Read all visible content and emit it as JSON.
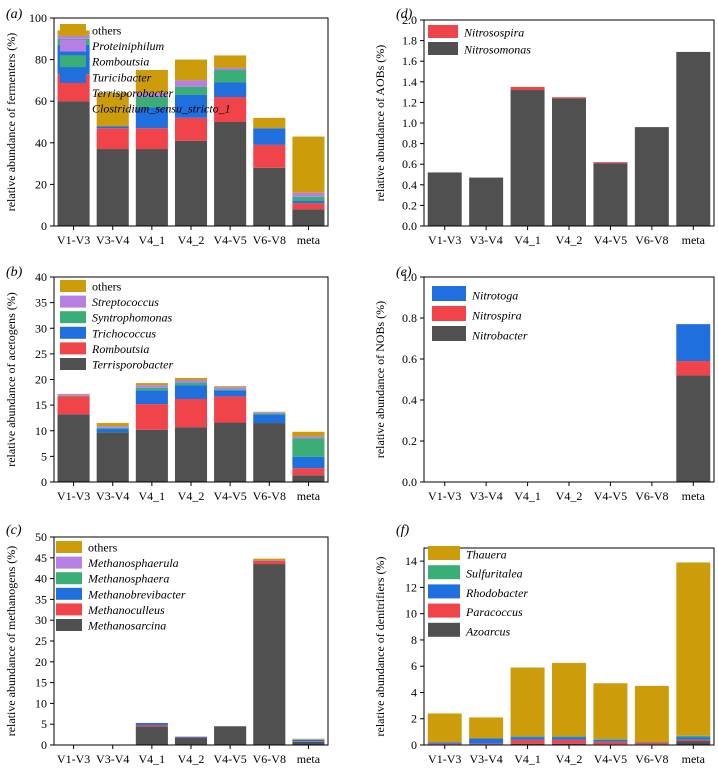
{
  "colors": {
    "dark": "#505050",
    "red": "#f0434a",
    "blue": "#1f6fde",
    "green": "#3aae76",
    "purple": "#b57fe4",
    "gold": "#cc9c0b"
  },
  "chart_data": [
    {
      "id": "a",
      "panel_label": "(a)",
      "type": "bar",
      "stacked": true,
      "ylabel": "relative abundance of fermenters (%)",
      "ylim": [
        0,
        100
      ],
      "yticks": [
        0,
        20,
        40,
        60,
        80,
        100
      ],
      "categories": [
        "V1-V3",
        "V3-V4",
        "V4_1",
        "V4_2",
        "V4-V5",
        "V6-V8",
        "meta"
      ],
      "legend_position": "top-left",
      "series": [
        {
          "name": "Clostridium_sensu_stricto_1",
          "color": "#505050",
          "values": [
            60,
            37,
            37,
            41,
            50,
            28,
            8
          ]
        },
        {
          "name": "Terrisporobacter",
          "color": "#f0434a",
          "values": [
            13,
            10,
            10,
            11,
            12,
            11,
            3
          ]
        },
        {
          "name": "Turicibacter",
          "color": "#1f6fde",
          "values": [
            14,
            1,
            10,
            11,
            7,
            8,
            1
          ]
        },
        {
          "name": "Romboutsia",
          "color": "#3aae76",
          "values": [
            3,
            0,
            5,
            4,
            6,
            0,
            2
          ]
        },
        {
          "name": "Proteiniphilum",
          "color": "#b57fe4",
          "values": [
            2,
            0,
            2,
            3,
            1,
            0,
            2
          ]
        },
        {
          "name": "others",
          "color": "#cc9c0b",
          "values": [
            2,
            16,
            11,
            10,
            6,
            5,
            27
          ]
        }
      ]
    },
    {
      "id": "d",
      "panel_label": "(d)",
      "type": "bar",
      "stacked": true,
      "ylabel": "relative abundance of AOBs (%)",
      "ylim": [
        0,
        2.0
      ],
      "yticks": [
        0,
        0.2,
        0.4,
        0.6,
        0.8,
        1.0,
        1.2,
        1.4,
        1.6,
        1.8,
        2.0
      ],
      "categories": [
        "V1-V3",
        "V3-V4",
        "V4_1",
        "V4_2",
        "V4-V5",
        "V6-V8",
        "meta"
      ],
      "legend_position": "top-left",
      "series": [
        {
          "name": "Nitrosomonas",
          "color": "#505050",
          "values": [
            0.52,
            0.47,
            1.32,
            1.24,
            0.61,
            0.96,
            1.69
          ]
        },
        {
          "name": "Nitrosospira",
          "color": "#f0434a",
          "values": [
            0,
            0,
            0.03,
            0.01,
            0.01,
            0,
            0
          ]
        }
      ]
    },
    {
      "id": "b",
      "panel_label": "(b)",
      "type": "bar",
      "stacked": true,
      "ylabel": "relative abundance of acetogens (%)",
      "ylim": [
        0,
        40
      ],
      "yticks": [
        0,
        5,
        10,
        15,
        20,
        25,
        30,
        35,
        40
      ],
      "categories": [
        "V1-V3",
        "V3-V4",
        "V4_1",
        "V4_2",
        "V4-V5",
        "V6-V8",
        "meta"
      ],
      "legend_position": "top-left",
      "series": [
        {
          "name": "Terrisporobacter",
          "color": "#505050",
          "values": [
            13.2,
            9.7,
            10.2,
            10.7,
            11.6,
            11.5,
            1.3
          ]
        },
        {
          "name": "Romboutsia",
          "color": "#f0434a",
          "values": [
            3.5,
            0,
            5.0,
            5.5,
            5.1,
            0,
            1.4
          ]
        },
        {
          "name": "Trichococcus",
          "color": "#1f6fde",
          "values": [
            0,
            0.7,
            2.7,
            2.7,
            1.2,
            1.7,
            2.2
          ]
        },
        {
          "name": "Syntrophomonas",
          "color": "#3aae76",
          "values": [
            0.1,
            0.2,
            0.5,
            0.5,
            0.2,
            0.2,
            3.6
          ]
        },
        {
          "name": "Streptococcus",
          "color": "#b57fe4",
          "values": [
            0.3,
            0.3,
            0.5,
            0.5,
            0.4,
            0.2,
            0.4
          ]
        },
        {
          "name": "others",
          "color": "#cc9c0b",
          "values": [
            0.1,
            0.6,
            0.4,
            0.4,
            0.2,
            0.1,
            0.9
          ]
        }
      ]
    },
    {
      "id": "e",
      "panel_label": "(e)",
      "type": "bar",
      "stacked": true,
      "ylabel": "relative abundance of NOBs (%)",
      "ylim": [
        0,
        1.0
      ],
      "yticks": [
        0,
        0.2,
        0.4,
        0.6,
        0.8,
        1.0
      ],
      "categories": [
        "V1-V3",
        "V3-V4",
        "V4_1",
        "V4_2",
        "V4-V5",
        "V6-V8",
        "meta"
      ],
      "legend_position": "top-left",
      "series": [
        {
          "name": "Nitrobacter",
          "color": "#505050",
          "values": [
            0,
            0,
            0,
            0,
            0,
            0,
            0.52
          ]
        },
        {
          "name": "Nitrospira",
          "color": "#f0434a",
          "values": [
            0,
            0,
            0,
            0,
            0,
            0,
            0.07
          ]
        },
        {
          "name": "Nitrotoga",
          "color": "#1f6fde",
          "values": [
            0,
            0,
            0,
            0,
            0,
            0,
            0.18
          ]
        }
      ]
    },
    {
      "id": "c",
      "panel_label": "(c)",
      "type": "bar",
      "stacked": true,
      "ylabel": "relative abundance of methanogens (%)",
      "ylim": [
        0,
        50
      ],
      "yticks": [
        0,
        5,
        10,
        15,
        20,
        25,
        30,
        35,
        40,
        45,
        50
      ],
      "categories": [
        "V1-V3",
        "V3-V4",
        "V4_1",
        "V4_2",
        "V4-V5",
        "V6-V8",
        "meta"
      ],
      "legend_position": "top-left",
      "series": [
        {
          "name": "Methanosarcina",
          "color": "#505050",
          "values": [
            0,
            0,
            4.5,
            1.7,
            4.5,
            43.5,
            0.8
          ]
        },
        {
          "name": "Methanoculleus",
          "color": "#f0434a",
          "values": [
            0,
            0,
            0.3,
            0.1,
            0,
            0.8,
            0.1
          ]
        },
        {
          "name": "Methanobrevibacter",
          "color": "#1f6fde",
          "values": [
            0,
            0,
            0.5,
            0.2,
            0,
            0.1,
            0.3
          ]
        },
        {
          "name": "Methanosphaera",
          "color": "#3aae76",
          "values": [
            0,
            0,
            0,
            0,
            0,
            0,
            0.1
          ]
        },
        {
          "name": "Methanosphaerula",
          "color": "#b57fe4",
          "values": [
            0,
            0,
            0,
            0,
            0,
            0,
            0.1
          ]
        },
        {
          "name": "others",
          "color": "#cc9c0b",
          "values": [
            0,
            0,
            0,
            0,
            0,
            0.4,
            0.1
          ]
        }
      ]
    },
    {
      "id": "f",
      "panel_label": "(f)",
      "type": "bar",
      "stacked": true,
      "ylabel": "relative abundance of denitrifiers (%)",
      "ylim": [
        0,
        15
      ],
      "yticks": [
        0,
        2,
        4,
        6,
        8,
        10,
        12,
        14
      ],
      "categories": [
        "V1-V3",
        "V3-V4",
        "V4_1",
        "V4_2",
        "V4-V5",
        "V6-V8",
        "meta"
      ],
      "legend_position": "top-left",
      "series": [
        {
          "name": "Azoarcus",
          "color": "#505050",
          "values": [
            0.05,
            0.05,
            0.1,
            0.1,
            0.05,
            0.05,
            0.3
          ]
        },
        {
          "name": "Paracoccus",
          "color": "#f0434a",
          "values": [
            0.05,
            0.05,
            0.3,
            0.3,
            0.2,
            0.1,
            0.1
          ]
        },
        {
          "name": "Rhodobacter",
          "color": "#1f6fde",
          "values": [
            0.1,
            0.4,
            0.2,
            0.2,
            0.15,
            0.05,
            0.2
          ]
        },
        {
          "name": "Sulfuritalea",
          "color": "#3aae76",
          "values": [
            0,
            0,
            0.05,
            0.05,
            0.05,
            0,
            0.1
          ]
        },
        {
          "name": "Thauera",
          "color": "#cc9c0b",
          "values": [
            2.2,
            1.6,
            5.25,
            5.6,
            4.25,
            4.3,
            13.2
          ]
        }
      ]
    }
  ]
}
